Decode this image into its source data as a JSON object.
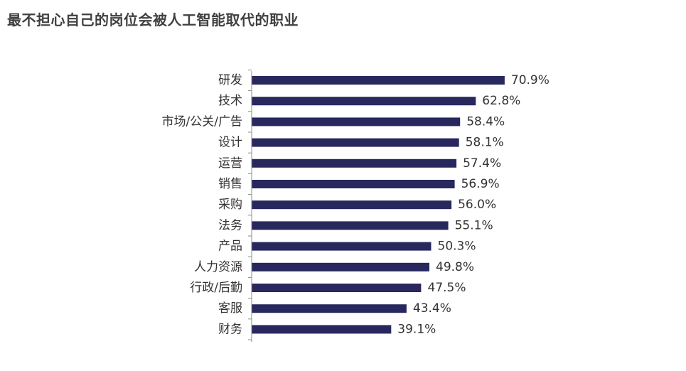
{
  "title": "最不担心自己的岗位会被人工智能取代的职业",
  "colors": {
    "bar": "#28285e",
    "axis": "#8c8c8c",
    "text": "#333333",
    "title": "#404040"
  },
  "chart_data": {
    "type": "bar",
    "orientation": "horizontal",
    "title": "最不担心自己的岗位会被人工智能取代的职业",
    "categories": [
      "研发",
      "技术",
      "市场/公关/广告",
      "设计",
      "运营",
      "销售",
      "采购",
      "法务",
      "产品",
      "人力资源",
      "行政/后勤",
      "客服",
      "财务"
    ],
    "values": [
      70.9,
      62.8,
      58.4,
      58.1,
      57.4,
      56.9,
      56.0,
      55.1,
      50.3,
      49.8,
      47.5,
      43.4,
      39.1
    ],
    "value_labels": [
      "70.9%",
      "62.8%",
      "58.4%",
      "58.1%",
      "57.4%",
      "56.9%",
      "56.0%",
      "55.1%",
      "50.3%",
      "49.8%",
      "47.5%",
      "43.4%",
      "39.1%"
    ],
    "grid": false,
    "legend": "none"
  }
}
